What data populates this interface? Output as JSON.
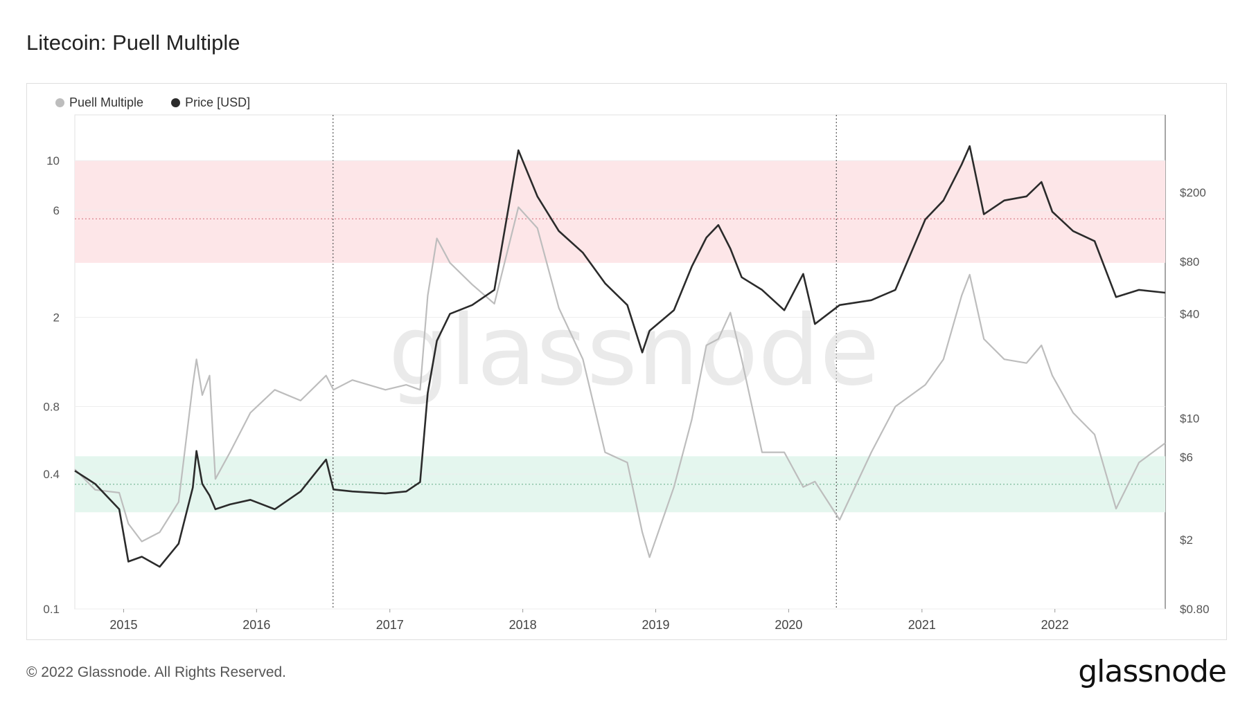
{
  "title": "Litecoin: Puell Multiple",
  "footer": "© 2022 Glassnode. All Rights Reserved.",
  "brand": "glassnode",
  "watermark": "glassnode",
  "legend": [
    {
      "label": "Puell Multiple",
      "color": "#bdbdbd"
    },
    {
      "label": "Price [USD]",
      "color": "#2b2b2b"
    }
  ],
  "colors": {
    "puell": "#bdbdbd",
    "price": "#2b2b2b",
    "high_band": "#fde6e8",
    "high_line": "#d9838c",
    "low_band": "#e4f6ee",
    "low_line": "#6fb28f"
  },
  "chart_data": {
    "type": "line",
    "x_range": [
      "2014-08-20",
      "2022-10-31"
    ],
    "x_ticks": [
      "2015",
      "2016",
      "2017",
      "2018",
      "2019",
      "2020",
      "2021",
      "2022"
    ],
    "y_left": {
      "scale": "log",
      "range": [
        0.1,
        16
      ],
      "ticks": [
        "0.1",
        "0.4",
        "0.8",
        "2",
        "6",
        "10"
      ]
    },
    "y_right": {
      "scale": "log",
      "range": [
        0.8,
        560
      ],
      "ticks": [
        "$0.80",
        "$2",
        "$6",
        "$10",
        "$40",
        "$80",
        "$200"
      ]
    },
    "bands": [
      {
        "name": "high",
        "from": 3.5,
        "to": 10,
        "line": 5.5
      },
      {
        "name": "low",
        "from": 0.27,
        "to": 0.48,
        "line": 0.36
      }
    ],
    "vlines": [
      "2016-07-29",
      "2020-05-11"
    ],
    "grid": true,
    "legend_position": "top-left",
    "series": [
      {
        "name": "Puell Multiple",
        "axis": "left",
        "x": [
          "2014-08-20",
          "2014-10-15",
          "2014-12-20",
          "2015-01-14",
          "2015-02-20",
          "2015-04-10",
          "2015-06-01",
          "2015-07-10",
          "2015-07-20",
          "2015-08-05",
          "2015-08-25",
          "2015-09-10",
          "2015-10-20",
          "2015-12-15",
          "2016-02-20",
          "2016-05-01",
          "2016-07-10",
          "2016-07-30",
          "2016-09-20",
          "2016-12-20",
          "2017-02-15",
          "2017-03-25",
          "2017-04-15",
          "2017-05-10",
          "2017-06-15",
          "2017-08-15",
          "2017-10-15",
          "2017-12-20",
          "2018-02-10",
          "2018-04-10",
          "2018-06-15",
          "2018-08-15",
          "2018-10-15",
          "2018-11-25",
          "2018-12-15",
          "2019-02-20",
          "2019-04-10",
          "2019-05-20",
          "2019-06-22",
          "2019-07-25",
          "2019-08-25",
          "2019-10-20",
          "2019-12-20",
          "2020-02-10",
          "2020-03-13",
          "2020-05-20",
          "2020-08-15",
          "2020-10-20",
          "2021-01-10",
          "2021-03-01",
          "2021-04-20",
          "2021-05-12",
          "2021-06-20",
          "2021-08-15",
          "2021-10-15",
          "2021-11-25",
          "2021-12-25",
          "2022-02-20",
          "2022-04-20",
          "2022-06-18",
          "2022-08-20",
          "2022-10-31"
        ],
        "y": [
          0.42,
          0.34,
          0.33,
          0.24,
          0.2,
          0.22,
          0.3,
          1.0,
          1.3,
          0.9,
          1.1,
          0.38,
          0.5,
          0.75,
          0.95,
          0.85,
          1.1,
          0.95,
          1.05,
          0.95,
          1.0,
          0.95,
          2.5,
          4.5,
          3.5,
          2.8,
          2.3,
          6.2,
          5.0,
          2.2,
          1.3,
          0.5,
          0.45,
          0.22,
          0.17,
          0.35,
          0.7,
          1.5,
          1.6,
          2.1,
          1.3,
          0.5,
          0.5,
          0.35,
          0.37,
          0.25,
          0.5,
          0.8,
          1.0,
          1.3,
          2.5,
          3.1,
          1.6,
          1.3,
          1.25,
          1.5,
          1.1,
          0.75,
          0.6,
          0.28,
          0.45,
          0.55
        ]
      },
      {
        "name": "Price [USD]",
        "axis": "right",
        "x": [
          "2014-08-20",
          "2014-10-15",
          "2014-12-20",
          "2015-01-14",
          "2015-02-20",
          "2015-04-10",
          "2015-06-01",
          "2015-07-10",
          "2015-07-20",
          "2015-08-05",
          "2015-08-25",
          "2015-09-10",
          "2015-10-20",
          "2015-12-15",
          "2016-02-20",
          "2016-05-01",
          "2016-07-10",
          "2016-07-30",
          "2016-09-20",
          "2016-12-20",
          "2017-02-15",
          "2017-03-25",
          "2017-04-15",
          "2017-05-10",
          "2017-06-15",
          "2017-08-15",
          "2017-10-15",
          "2017-12-20",
          "2018-02-10",
          "2018-04-10",
          "2018-06-15",
          "2018-08-15",
          "2018-10-15",
          "2018-11-25",
          "2018-12-15",
          "2019-02-20",
          "2019-04-10",
          "2019-05-20",
          "2019-06-22",
          "2019-07-25",
          "2019-08-25",
          "2019-10-20",
          "2019-12-20",
          "2020-02-10",
          "2020-03-13",
          "2020-05-20",
          "2020-08-15",
          "2020-10-20",
          "2021-01-10",
          "2021-03-01",
          "2021-04-20",
          "2021-05-12",
          "2021-06-20",
          "2021-08-15",
          "2021-10-15",
          "2021-11-25",
          "2021-12-25",
          "2022-02-20",
          "2022-04-20",
          "2022-06-18",
          "2022-08-20",
          "2022-10-31"
        ],
        "y": [
          5.0,
          4.2,
          3.0,
          1.5,
          1.6,
          1.4,
          1.9,
          4.0,
          6.5,
          4.2,
          3.6,
          3.0,
          3.2,
          3.4,
          3.0,
          3.8,
          5.8,
          3.9,
          3.8,
          3.7,
          3.8,
          4.3,
          14,
          28,
          40,
          45,
          55,
          350,
          190,
          120,
          90,
          60,
          45,
          24,
          32,
          42,
          75,
          110,
          130,
          95,
          65,
          55,
          42,
          68,
          35,
          45,
          48,
          55,
          140,
          180,
          290,
          370,
          150,
          180,
          190,
          230,
          155,
          120,
          105,
          50,
          55,
          53
        ]
      }
    ]
  }
}
